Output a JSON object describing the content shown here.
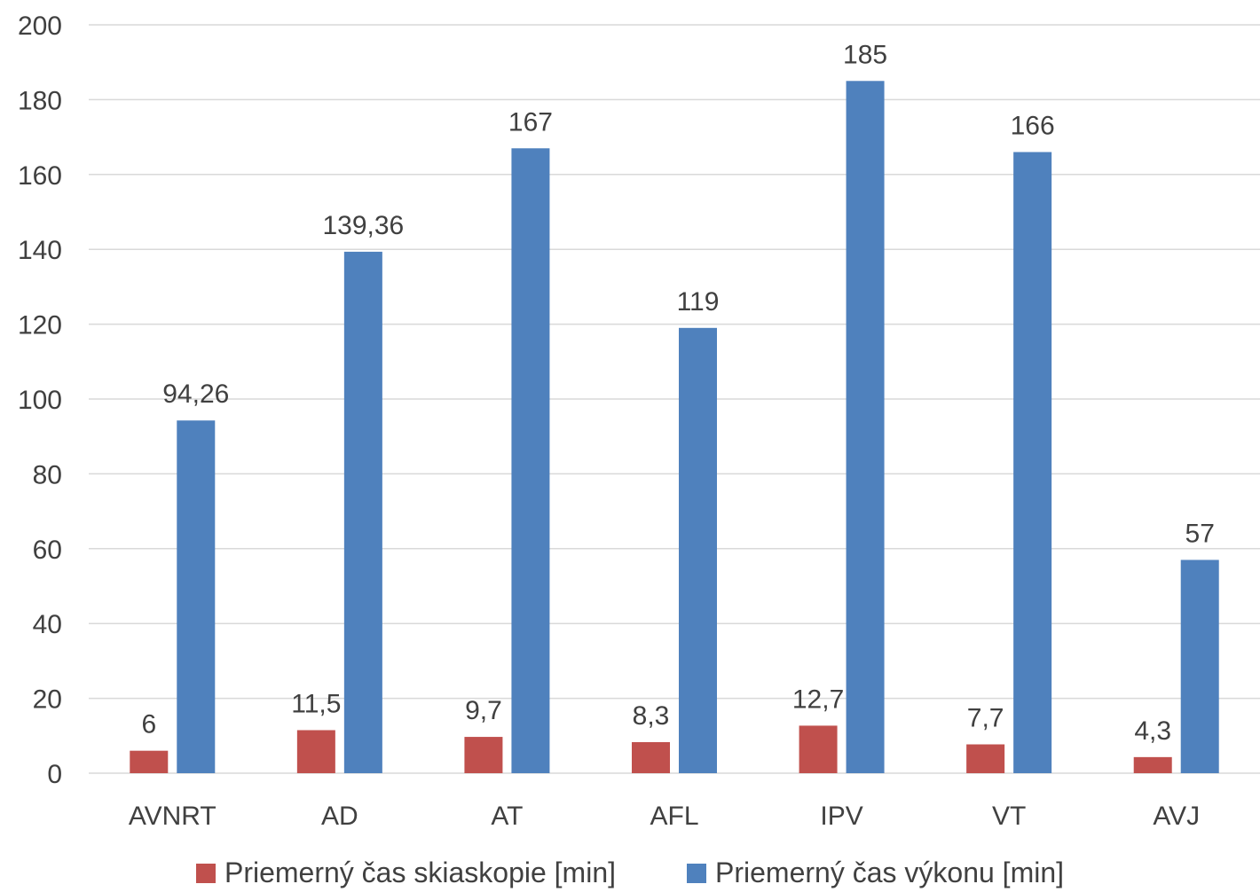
{
  "chart_data": {
    "type": "bar",
    "title": "",
    "xlabel": "",
    "ylabel": "",
    "ylim": [
      0,
      200
    ],
    "yticks": [
      0,
      20,
      40,
      60,
      80,
      100,
      120,
      140,
      160,
      180,
      200
    ],
    "grid": true,
    "legend_position": "bottom",
    "categories": [
      "AVNRT",
      "AD",
      "AT",
      "AFL",
      "IPV",
      "VT",
      "AVJ"
    ],
    "series": [
      {
        "name": "Priemerný čas skiaskopie [min]",
        "color": "#c0504d",
        "values": [
          6,
          11.5,
          9.7,
          8.3,
          12.7,
          7.7,
          4.3
        ],
        "labels": [
          "6",
          "11,5",
          "9,7",
          "8,3",
          "12,7",
          "7,7",
          "4,3"
        ]
      },
      {
        "name": "Priemerný čas výkonu [min]",
        "color": "#4f81bd",
        "values": [
          94.26,
          139.36,
          167,
          119,
          185,
          166,
          57
        ],
        "labels": [
          "94,26",
          "139,36",
          "167",
          "119",
          "185",
          "166",
          "57"
        ]
      }
    ]
  }
}
